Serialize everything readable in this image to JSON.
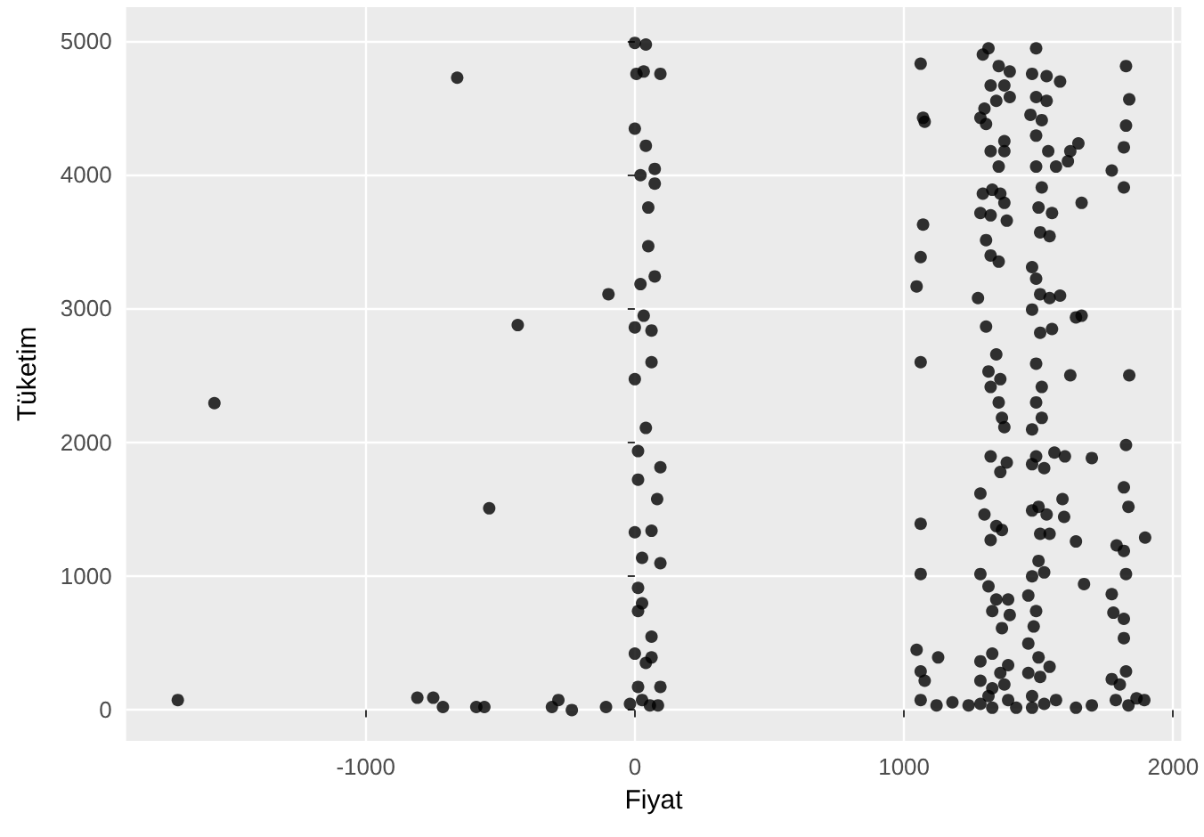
{
  "chart_data": {
    "type": "scatter",
    "xlabel": "Fiyat",
    "ylabel": "Tüketim",
    "color": "#000000",
    "marker": "circle",
    "grid": true,
    "xlim": [
      -1890,
      2030
    ],
    "ylim": [
      -230,
      5250
    ],
    "xticks": [
      -1000,
      0,
      1000,
      2000
    ],
    "yticks": [
      0,
      1000,
      2000,
      3000,
      4000,
      5000
    ],
    "x": [
      -1698,
      -1562,
      -660,
      -808,
      -749,
      -713,
      -589,
      -559,
      -541,
      -435,
      -308,
      -284,
      -234,
      -107,
      -98,
      0,
      41,
      6,
      33,
      95,
      0,
      41,
      21,
      74,
      74,
      50,
      50,
      74,
      21,
      33,
      0,
      62,
      62,
      0,
      41,
      12,
      12,
      95,
      83,
      0,
      62,
      27,
      95,
      12,
      27,
      12,
      62,
      0,
      41,
      62,
      -18,
      12,
      56,
      95,
      27,
      86,
      1062,
      1071,
      1077,
      1071,
      1062,
      1047,
      1062,
      1062,
      1062,
      1047,
      1062,
      1077,
      1127,
      1062,
      1121,
      1180,
      1240,
      1314,
      1293,
      1352,
      1393,
      1322,
      1373,
      1299,
      1343,
      1393,
      1284,
      1305,
      1322,
      1352,
      1373,
      1373,
      1293,
      1328,
      1358,
      1284,
      1322,
      1373,
      1382,
      1305,
      1322,
      1352,
      1275,
      1305,
      1343,
      1314,
      1322,
      1358,
      1352,
      1364,
      1373,
      1322,
      1382,
      1358,
      1284,
      1299,
      1343,
      1322,
      1364,
      1284,
      1314,
      1343,
      1387,
      1364,
      1328,
      1393,
      1284,
      1328,
      1387,
      1284,
      1328,
      1373,
      1284,
      1328,
      1387,
      1417,
      1358,
      1314,
      1491,
      1476,
      1530,
      1580,
      1491,
      1530,
      1470,
      1512,
      1491,
      1536,
      1491,
      1565,
      1512,
      1500,
      1550,
      1506,
      1541,
      1476,
      1491,
      1506,
      1541,
      1580,
      1476,
      1506,
      1550,
      1491,
      1512,
      1491,
      1512,
      1476,
      1491,
      1521,
      1476,
      1559,
      1500,
      1530,
      1476,
      1506,
      1541,
      1500,
      1476,
      1521,
      1462,
      1491,
      1482,
      1462,
      1500,
      1462,
      1506,
      1541,
      1476,
      1521,
      1565,
      1476,
      1639,
      1698,
      1589,
      1595,
      1639,
      1669,
      1618,
      1618,
      1648,
      1660,
      1609,
      1660,
      1639,
      1598,
      1698,
      1825,
      1837,
      1825,
      1817,
      1772,
      1817,
      1837,
      1825,
      1817,
      1834,
      1896,
      1790,
      1817,
      1825,
      1772,
      1778,
      1817,
      1817,
      1825,
      1772,
      1802,
      1787,
      1864,
      1834,
      1893
    ],
    "values": [
      75,
      2292,
      4723,
      92,
      92,
      23,
      23,
      23,
      1507,
      2875,
      23,
      75,
      0,
      23,
      3106,
      4983,
      4971,
      4752,
      4769,
      4752,
      4342,
      4215,
      3995,
      4042,
      3932,
      3753,
      3464,
      3239,
      3181,
      2945,
      2858,
      2835,
      2598,
      2471,
      2107,
      1934,
      1721,
      1813,
      1576,
      1328,
      1339,
      1137,
      1097,
      912,
      797,
      739,
      548,
      421,
      352,
      393,
      46,
      173,
      35,
      173,
      75,
      35,
      4827,
      4423,
      4394,
      3626,
      3383,
      3164,
      2598,
      1391,
      1016,
      450,
      289,
      219,
      393,
      75,
      35,
      58,
      35,
      4942,
      4896,
      4810,
      4769,
      4665,
      4665,
      4492,
      4550,
      4578,
      4423,
      4377,
      4174,
      4059,
      4249,
      4174,
      3857,
      3886,
      3857,
      3712,
      3695,
      3788,
      3655,
      3510,
      3395,
      3349,
      3077,
      2864,
      2656,
      2529,
      2413,
      2471,
      2298,
      2182,
      2113,
      1894,
      1848,
      1778,
      1617,
      1461,
      1374,
      1270,
      1345,
      1016,
      924,
      826,
      826,
      612,
      739,
      710,
      364,
      421,
      335,
      219,
      162,
      191,
      46,
      17,
      75,
      17,
      277,
      104,
      4942,
      4752,
      4735,
      4694,
      4578,
      4550,
      4446,
      4406,
      4290,
      4174,
      4059,
      4059,
      3903,
      3753,
      3712,
      3568,
      3539,
      3308,
      3222,
      3106,
      3077,
      3095,
      2991,
      2818,
      2846,
      2587,
      2413,
      2298,
      2182,
      2096,
      1894,
      1807,
      1836,
      1923,
      1518,
      1461,
      1490,
      1316,
      1316,
      1114,
      999,
      1028,
      855,
      739,
      624,
      497,
      393,
      277,
      248,
      323,
      104,
      46,
      75,
      17,
      17,
      35,
      1576,
      1443,
      1259,
      941,
      2500,
      4174,
      4232,
      3788,
      4099,
      2945,
      2933,
      1894,
      1882,
      4810,
      4561,
      4365,
      4203,
      4030,
      3903,
      2500,
      1980,
      1663,
      1518,
      1288,
      1230,
      1189,
      1016,
      866,
      727,
      681,
      537,
      289,
      231,
      191,
      75,
      87,
      35,
      75
    ]
  }
}
